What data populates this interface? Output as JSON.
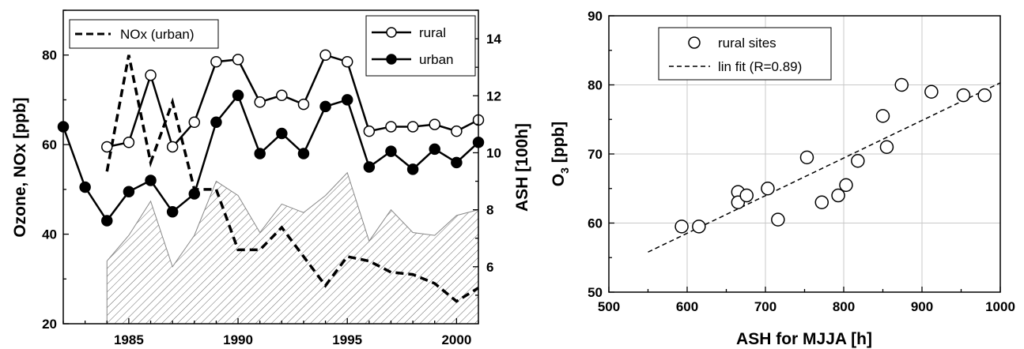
{
  "chart_data": [
    {
      "type": "line",
      "xlabel": "",
      "ylabel": "Ozone, NOx [ppb]",
      "y2label": "ASH [100h]",
      "xlim": [
        1982,
        2001
      ],
      "ylim": [
        20,
        90
      ],
      "y2lim": [
        4,
        15
      ],
      "xticks": [
        "1985",
        "1990",
        "1995",
        "2000"
      ],
      "yticks": [
        "20",
        "40",
        "60",
        "80"
      ],
      "y2ticks": [
        "6",
        "8",
        "10",
        "12",
        "14"
      ],
      "legend_left": {
        "label": "NOx (urban)"
      },
      "legend_right": [
        {
          "label": "rural"
        },
        {
          "label": "urban"
        }
      ],
      "series": [
        {
          "name": "rural",
          "axis": "left",
          "marker": "open-circle",
          "x": [
            1984,
            1985,
            1986,
            1987,
            1988,
            1989,
            1990,
            1991,
            1992,
            1993,
            1994,
            1995,
            1996,
            1997,
            1998,
            1999,
            2000,
            2001
          ],
          "values": [
            59.5,
            60.5,
            75.5,
            59.5,
            65,
            78.5,
            79,
            69.5,
            71,
            69,
            80,
            78.5,
            63,
            64,
            64,
            64.5,
            63,
            65.5
          ]
        },
        {
          "name": "urban",
          "axis": "left",
          "marker": "filled-circle",
          "x": [
            1982,
            1983,
            1984,
            1985,
            1986,
            1987,
            1988,
            1989,
            1990,
            1991,
            1992,
            1993,
            1994,
            1995,
            1996,
            1997,
            1998,
            1999,
            2000,
            2001
          ],
          "values": [
            64,
            50.5,
            43,
            49.5,
            52,
            45,
            49,
            65,
            71,
            58,
            62.5,
            58,
            68.5,
            70,
            55,
            58.5,
            54.5,
            59,
            56,
            60.5
          ]
        },
        {
          "name": "NOx (urban)",
          "axis": "left",
          "style": "dashed",
          "x": [
            1984,
            1985,
            1986,
            1987,
            1988,
            1989,
            1990,
            1991,
            1992,
            1993,
            1994,
            1995,
            1996,
            1997,
            1998,
            1999,
            2000,
            2001
          ],
          "values": [
            54,
            80,
            56,
            69.5,
            50,
            50,
            36.5,
            36.5,
            41.5,
            35,
            28.5,
            35,
            34,
            31.5,
            31,
            29,
            25,
            28
          ]
        },
        {
          "name": "ASH",
          "axis": "right",
          "style": "hatched-area",
          "x": [
            1984,
            1985,
            1986,
            1987,
            1988,
            1989,
            1990,
            1991,
            1992,
            1993,
            1994,
            1995,
            1996,
            1997,
            1998,
            1999,
            2000,
            2001
          ],
          "values": [
            6.2,
            7.1,
            8.3,
            6.0,
            7.1,
            9.0,
            8.5,
            7.2,
            8.2,
            7.9,
            8.5,
            9.3,
            6.9,
            8.0,
            7.2,
            7.1,
            7.8,
            8.0
          ]
        }
      ]
    },
    {
      "type": "scatter",
      "xlabel": "ASH for MJJA [h]",
      "ylabel": "O3 [ppb]",
      "ylabel_main": "O",
      "ylabel_sub": "3",
      "ylabel_unit": " [ppb]",
      "xlim": [
        500,
        1000
      ],
      "ylim": [
        50,
        90
      ],
      "xticks": [
        "500",
        "600",
        "700",
        "800",
        "900",
        "1000"
      ],
      "yticks": [
        "50",
        "60",
        "70",
        "80",
        "90"
      ],
      "grid": true,
      "legend": [
        {
          "label": "rural sites"
        },
        {
          "label": "lin fit (R=0.89)"
        }
      ],
      "points": [
        [
          593,
          59.5
        ],
        [
          615,
          59.5
        ],
        [
          665,
          64.5
        ],
        [
          665,
          63
        ],
        [
          676,
          64
        ],
        [
          703,
          65
        ],
        [
          716,
          60.5
        ],
        [
          753,
          69.5
        ],
        [
          772,
          63
        ],
        [
          793,
          64
        ],
        [
          803,
          65.5
        ],
        [
          818,
          69
        ],
        [
          850,
          75.5
        ],
        [
          855,
          71
        ],
        [
          874,
          80
        ],
        [
          912,
          79
        ],
        [
          953,
          78.5
        ],
        [
          980,
          78.5
        ]
      ],
      "fit": {
        "x": [
          550,
          1000
        ],
        "y": [
          55.8,
          80.3
        ]
      }
    }
  ]
}
